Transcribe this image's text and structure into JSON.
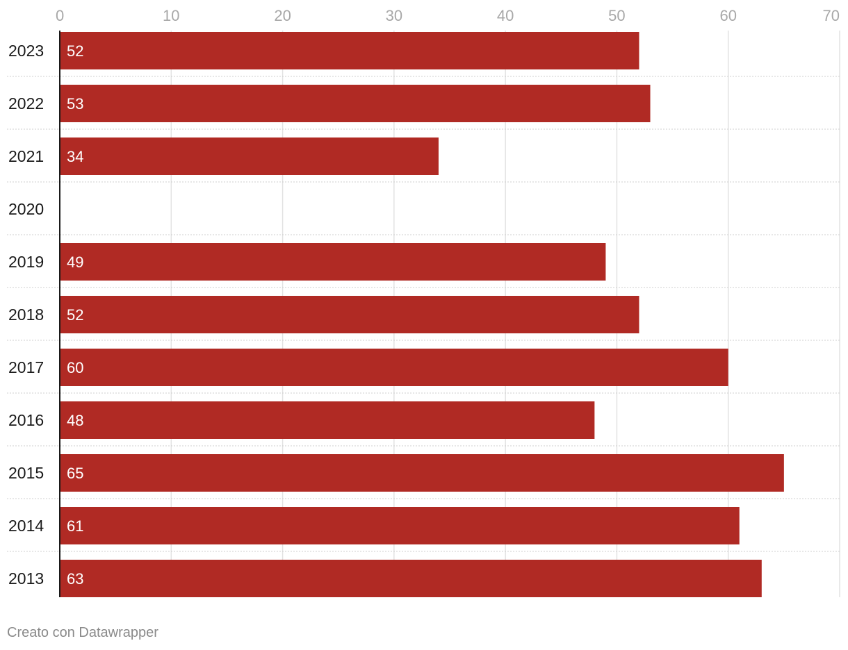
{
  "chart_data": {
    "type": "bar",
    "orientation": "horizontal",
    "categories": [
      "2023",
      "2022",
      "2021",
      "2020",
      "2019",
      "2018",
      "2017",
      "2016",
      "2015",
      "2014",
      "2013"
    ],
    "values": [
      52,
      53,
      34,
      null,
      49,
      52,
      60,
      48,
      65,
      61,
      63
    ],
    "value_labels": [
      "52",
      "53",
      "34",
      "",
      "49",
      "52",
      "60",
      "48",
      "65",
      "61",
      "63"
    ],
    "xlim": [
      0,
      70
    ],
    "x_ticks": [
      0,
      10,
      20,
      30,
      40,
      50,
      60,
      70
    ],
    "x_tick_labels": [
      "0",
      "10",
      "20",
      "30",
      "40",
      "50",
      "60",
      "70"
    ],
    "x_axis_position": "top",
    "grid": true,
    "bar_color": "#b02a24",
    "title": "",
    "xlabel": "",
    "ylabel": ""
  },
  "footer": {
    "credit": "Creato con Datawrapper"
  }
}
